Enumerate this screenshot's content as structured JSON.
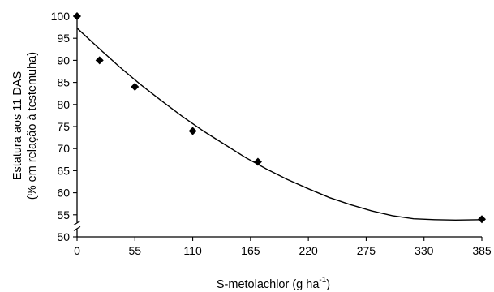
{
  "chart_data": {
    "type": "scatter",
    "xlabel_main": "S-metolachlor (g ha",
    "xlabel_sup": "-1",
    "xlabel_close": ")",
    "ylabel_line1": "Estatura aos 11 DAS",
    "ylabel_line2": "(% em relação à testemuha)",
    "xlim": [
      0,
      385
    ],
    "ylim": [
      50,
      100
    ],
    "x_ticks": [
      0,
      55,
      110,
      165,
      220,
      275,
      330,
      385
    ],
    "y_ticks": [
      50,
      55,
      60,
      65,
      70,
      75,
      80,
      85,
      90,
      95,
      100
    ],
    "y_axis_break": true,
    "grid": false,
    "legend": "none",
    "colors": {
      "points": "#000000",
      "line": "#000000"
    },
    "series": [
      {
        "kind": "points",
        "marker": "diamond",
        "x": [
          0,
          21.4,
          55,
          110,
          172,
          385
        ],
        "y": [
          100,
          90,
          84,
          74,
          67,
          54
        ]
      },
      {
        "kind": "fitted-curve",
        "x": [
          0,
          20,
          40,
          60,
          80,
          100,
          120,
          140,
          160,
          180,
          200,
          220,
          240,
          260,
          280,
          300,
          320,
          340,
          360,
          385
        ],
        "y": [
          97.3,
          92.9,
          88.6,
          84.6,
          80.9,
          77.3,
          74.0,
          71.0,
          68.0,
          65.4,
          63.0,
          60.9,
          58.9,
          57.3,
          55.9,
          54.8,
          54.1,
          53.9,
          53.8,
          53.9
        ]
      }
    ]
  }
}
